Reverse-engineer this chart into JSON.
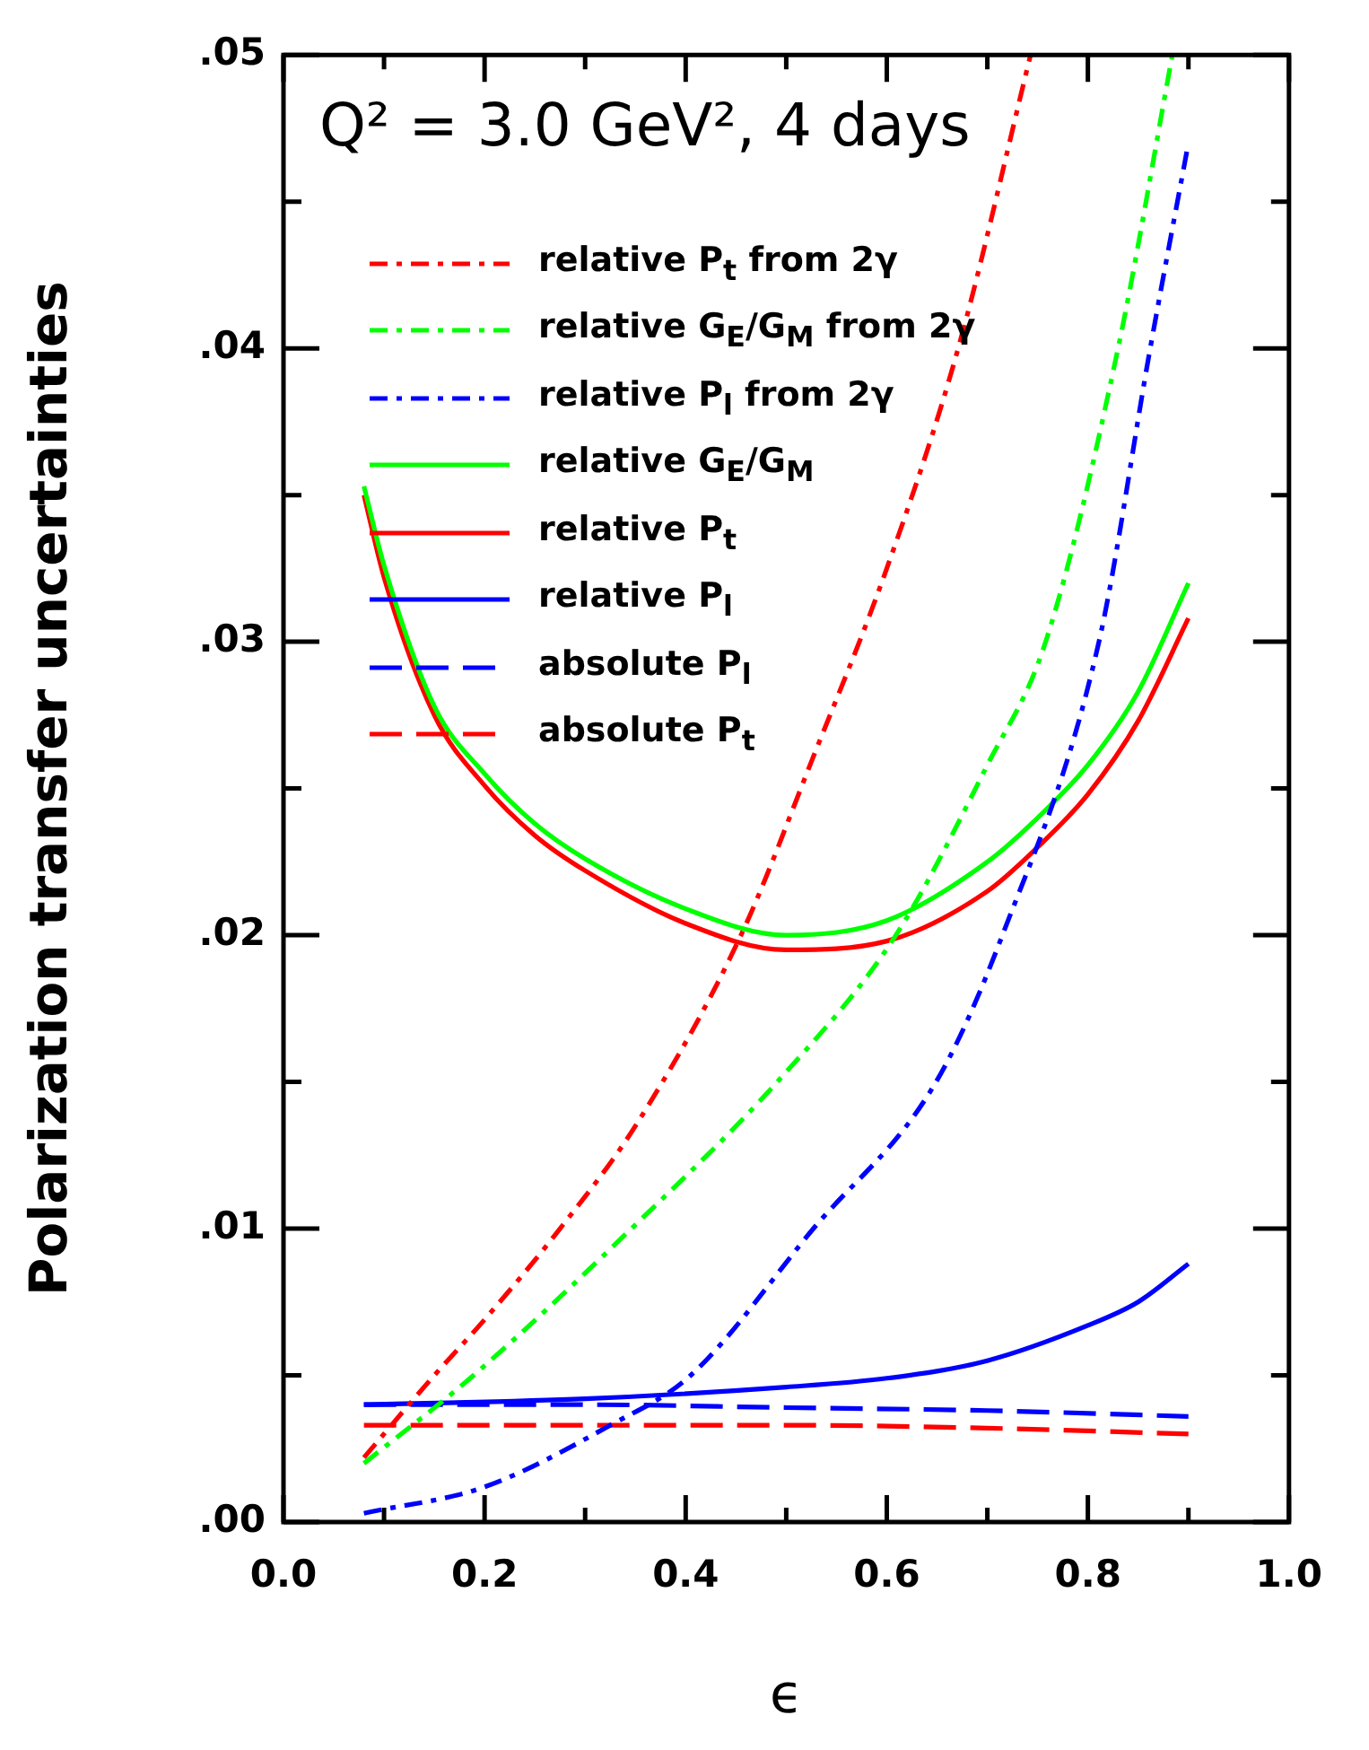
{
  "chart_data": {
    "type": "line",
    "title": "Q² = 3.0 GeV², 4 days",
    "xlabel": "ϵ",
    "ylabel": "Polarization transfer uncertainties",
    "xlim": [
      0,
      1
    ],
    "xticks": [
      {
        "value": 0,
        "label": "0.0"
      },
      {
        "value": 0.1,
        "label": null
      },
      {
        "value": 0.2,
        "label": "0.2"
      },
      {
        "value": 0.3,
        "label": null
      },
      {
        "value": 0.4,
        "label": "0.4"
      },
      {
        "value": 0.5,
        "label": null
      },
      {
        "value": 0.6,
        "label": "0.6"
      },
      {
        "value": 0.7,
        "label": null
      },
      {
        "value": 0.8,
        "label": "0.8"
      },
      {
        "value": 0.9,
        "label": null
      },
      {
        "value": 1,
        "label": "1.0"
      }
    ],
    "ylim": [
      0,
      0.05
    ],
    "yticks": [
      {
        "value": 0,
        "label": ".00"
      },
      {
        "value": 0.005,
        "label": null
      },
      {
        "value": 0.01,
        "label": ".01"
      },
      {
        "value": 0.015,
        "label": null
      },
      {
        "value": 0.02,
        "label": ".02"
      },
      {
        "value": 0.025,
        "label": null
      },
      {
        "value": 0.03,
        "label": ".03"
      },
      {
        "value": 0.035,
        "label": null
      },
      {
        "value": 0.04,
        "label": ".04"
      },
      {
        "value": 0.045,
        "label": null
      },
      {
        "value": 0.05,
        "label": ".05"
      }
    ],
    "legend": "top left",
    "marker": "none",
    "series": [
      {
        "name": "relative P$_{t}$ from 2γ",
        "color": "#ff0000",
        "line_style": "dotted",
        "x": [
          0.08,
          0.15,
          0.2,
          0.275,
          0.35,
          0.455,
          0.526,
          0.6,
          0.671,
          0.743
        ],
        "values": [
          0.0022,
          0.005,
          0.0069,
          0.01,
          0.0135,
          0.02,
          0.026,
          0.0325,
          0.04,
          0.05
        ]
      },
      {
        "name": "relative G$_{E}$/G$_{M}$ from 2γ",
        "color": "#00ff00",
        "line_style": "dotted",
        "x": [
          0.08,
          0.189,
          0.346,
          0.491,
          0.609,
          0.7,
          0.758,
          0.83,
          0.884
        ],
        "values": [
          0.002,
          0.005,
          0.01,
          0.015,
          0.02,
          0.0258,
          0.03,
          0.04,
          0.05
        ]
      },
      {
        "name": "relative P$_{l}$ from 2γ",
        "color": "#0000ff",
        "line_style": "dotted",
        "x": [
          0.08,
          0.2,
          0.325,
          0.405,
          0.527,
          0.649,
          0.715,
          0.811,
          0.862,
          0.9
        ],
        "values": [
          0.0003,
          0.0012,
          0.0033,
          0.005,
          0.01,
          0.015,
          0.02,
          0.03,
          0.04,
          0.047
        ]
      },
      {
        "name": "relative G$_{E}$/G$_{M}$",
        "color": "#00ff00",
        "line_style": "solid",
        "x": [
          0.08,
          0.1,
          0.15,
          0.2,
          0.25,
          0.3,
          0.4,
          0.5,
          0.6,
          0.7,
          0.75,
          0.8,
          0.85,
          0.9
        ],
        "values": [
          0.0353,
          0.0326,
          0.0278,
          0.0255,
          0.0238,
          0.0226,
          0.0209,
          0.02,
          0.0205,
          0.0225,
          0.024,
          0.0258,
          0.0283,
          0.032
        ]
      },
      {
        "name": "relative P$_{t}$",
        "color": "#ff0000",
        "line_style": "solid",
        "x": [
          0.08,
          0.1,
          0.15,
          0.2,
          0.25,
          0.3,
          0.4,
          0.5,
          0.6,
          0.7,
          0.75,
          0.8,
          0.85,
          0.9
        ],
        "values": [
          0.035,
          0.0322,
          0.0275,
          0.0251,
          0.0234,
          0.0222,
          0.0204,
          0.0195,
          0.0198,
          0.0215,
          0.023,
          0.0248,
          0.0273,
          0.0308
        ]
      },
      {
        "name": "relative P$_{l}$",
        "color": "#0000ff",
        "line_style": "solid",
        "x": [
          0.08,
          0.3,
          0.5,
          0.6,
          0.7,
          0.8,
          0.85,
          0.9
        ],
        "values": [
          0.004,
          0.0042,
          0.0046,
          0.0049,
          0.0055,
          0.0067,
          0.0075,
          0.0088
        ]
      },
      {
        "name": "absolute P$_{l}$",
        "color": "#0000ff",
        "line_style": "dashed",
        "x": [
          0.08,
          0.3,
          0.5,
          0.7,
          0.9
        ],
        "values": [
          0.004,
          0.004,
          0.0039,
          0.0038,
          0.0036
        ]
      },
      {
        "name": "absolute P$_{t}$",
        "color": "#ff0000",
        "line_style": "dashed",
        "x": [
          0.08,
          0.5,
          0.7,
          0.9
        ],
        "values": [
          0.0033,
          0.0033,
          0.0032,
          0.003
        ]
      }
    ]
  }
}
